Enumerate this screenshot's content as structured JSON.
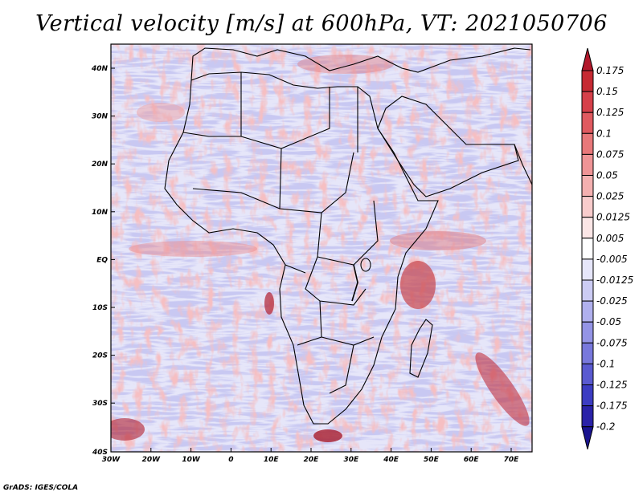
{
  "title": "Vertical velocity [m/s] at 600hPa, VT: 2021050706",
  "footer": "GrADS: IGES/COLA",
  "map": {
    "lat_labels": [
      "40N",
      "30N",
      "20N",
      "10N",
      "EQ",
      "10S",
      "20S",
      "30S",
      "40S"
    ],
    "lon_labels": [
      "30W",
      "20W",
      "10W",
      "0",
      "10E",
      "20E",
      "30E",
      "40E",
      "50E",
      "60E",
      "70E"
    ]
  },
  "colorbar": {
    "levels": [
      "0.175",
      "0.15",
      "0.125",
      "0.1",
      "0.075",
      "0.05",
      "0.025",
      "0.0125",
      "0.005",
      "-0.005",
      "-0.0125",
      "-0.025",
      "-0.05",
      "-0.075",
      "-0.1",
      "-0.125",
      "-0.175",
      "-0.2"
    ],
    "colors": [
      "#b2182b",
      "#c62a33",
      "#d6404a",
      "#e05a60",
      "#e8787a",
      "#ef9496",
      "#f4b0b0",
      "#f8cccc",
      "#fbe6e6",
      "#ffffff",
      "#e6e6fa",
      "#ccccf4",
      "#b0b0ee",
      "#9494e6",
      "#7878dc",
      "#5a5ad0",
      "#3c3cc2",
      "#2a22a8",
      "#1a1490"
    ]
  }
}
